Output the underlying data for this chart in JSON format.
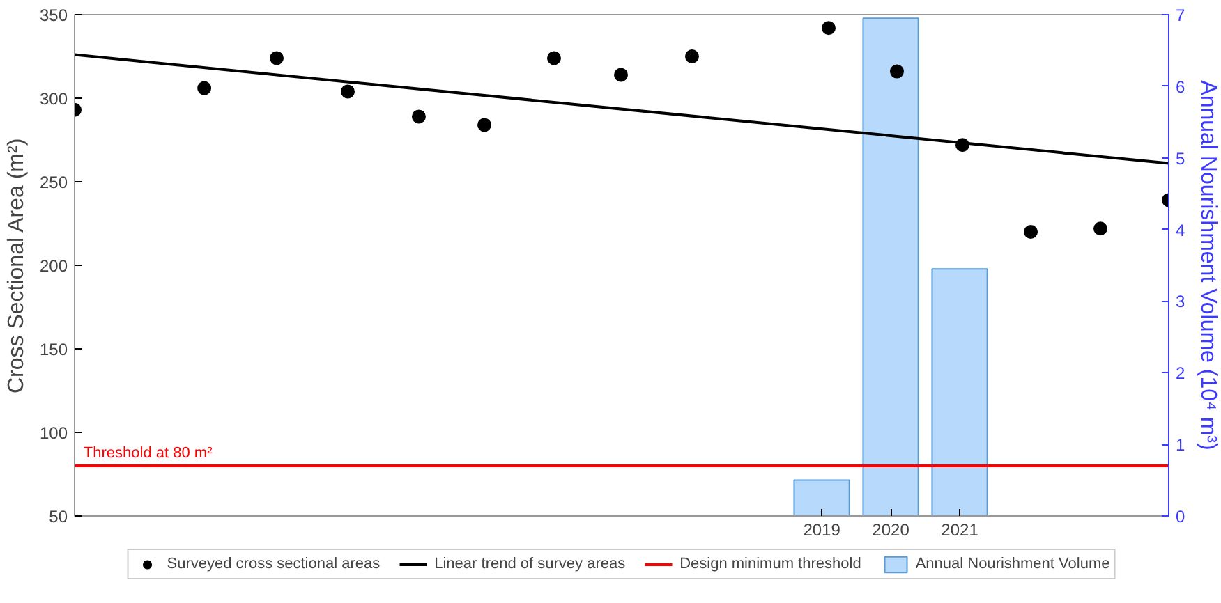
{
  "chart_data": {
    "type": "scatter",
    "ylabel": "Cross Sectional Area (m²)",
    "y2label": "Annual Nourishment Volume (10⁴ m³)",
    "xlim": [
      2008.17,
      2024.03
    ],
    "xticks": [
      2019,
      2020,
      2021
    ],
    "ylim": [
      50,
      350
    ],
    "yticks": [
      50,
      100,
      150,
      200,
      250,
      300,
      350
    ],
    "y2lim": [
      0,
      7
    ],
    "y2ticks": [
      0,
      1,
      2,
      3,
      4,
      5,
      6,
      7
    ],
    "grid": false,
    "legend": "bottom",
    "marker": "circle",
    "series": [
      {
        "name": "Surveyed cross sectional areas",
        "color": "#000000",
        "x": [
          2008.17,
          2010.05,
          2011.1,
          2012.13,
          2013.16,
          2014.11,
          2015.12,
          2016.09,
          2017.12,
          2019.1,
          2020.09,
          2021.04,
          2022.03,
          2023.04,
          2024.03
        ],
        "values": [
          293,
          306,
          324,
          304,
          289,
          284,
          324,
          314,
          325,
          342,
          316,
          272,
          220,
          222,
          239
        ]
      },
      {
        "name": "Linear trend of survey areas",
        "type": "line",
        "marker": "none",
        "color": "#000000",
        "x": [
          2008.17,
          2024.03
        ],
        "values": [
          326,
          261
        ]
      },
      {
        "name": "Design minimum threshold",
        "type": "line",
        "marker": "none",
        "color": "#ff0000",
        "x": [
          2008.17,
          2024.03
        ],
        "values": [
          80,
          80
        ]
      },
      {
        "name": "Annual Nourishment Volume",
        "type": "bar",
        "axis": "y2",
        "color": "#b7d9fb",
        "x": [
          2019,
          2020,
          2021
        ],
        "values": [
          0.5,
          6.95,
          3.45
        ]
      }
    ],
    "annotations": [
      {
        "text": "Threshold at 80 m²",
        "x": 2008.3,
        "y": 80
      }
    ]
  }
}
